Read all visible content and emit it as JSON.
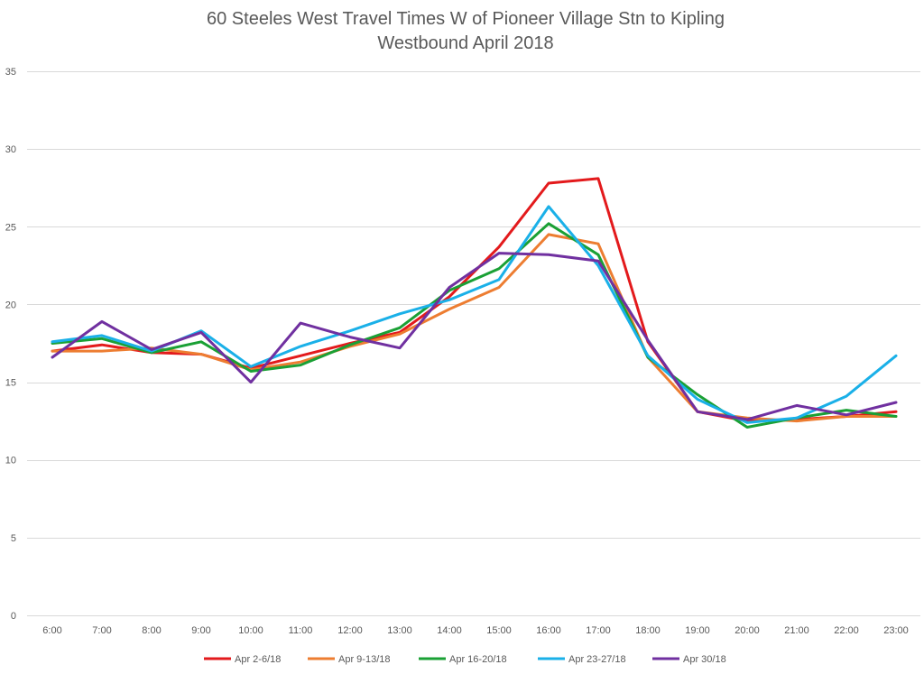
{
  "chart_data": {
    "type": "line",
    "title_line1": "60 Steeles West Travel Times W of Pioneer Village Stn to Kipling",
    "title_line2": "Westbound  April 2018",
    "xlabel": "",
    "ylabel": "",
    "categories": [
      "6:00",
      "7:00",
      "8:00",
      "9:00",
      "10:00",
      "11:00",
      "12:00",
      "13:00",
      "14:00",
      "15:00",
      "16:00",
      "17:00",
      "18:00",
      "19:00",
      "20:00",
      "21:00",
      "22:00",
      "23:00"
    ],
    "ylim": [
      0,
      35
    ],
    "yticks": [
      0,
      5,
      10,
      15,
      20,
      25,
      30,
      35
    ],
    "grid": true,
    "legend_position": "bottom",
    "series": [
      {
        "name": "Apr 2-6/18",
        "color": "#e31a1c",
        "values": [
          17.0,
          17.4,
          16.9,
          16.8,
          15.9,
          16.7,
          17.5,
          18.2,
          20.5,
          23.7,
          27.8,
          28.1,
          17.6,
          13.1,
          12.5,
          12.6,
          12.8,
          13.1
        ]
      },
      {
        "name": "Apr 9-13/18",
        "color": "#ed7d31",
        "values": [
          17.0,
          17.0,
          17.2,
          16.8,
          15.8,
          16.3,
          17.3,
          18.1,
          19.7,
          21.1,
          24.5,
          23.9,
          16.6,
          13.1,
          12.7,
          12.5,
          12.8,
          12.8
        ]
      },
      {
        "name": "Apr 16-20/18",
        "color": "#1aa035",
        "values": [
          17.5,
          17.8,
          16.9,
          17.6,
          15.7,
          16.1,
          17.4,
          18.5,
          20.9,
          22.3,
          25.2,
          23.2,
          16.6,
          14.2,
          12.1,
          12.7,
          13.2,
          12.8
        ]
      },
      {
        "name": "Apr 23-27/18",
        "color": "#1ab0e8",
        "values": [
          17.6,
          18.0,
          17.0,
          18.3,
          16.0,
          17.3,
          18.3,
          19.4,
          20.3,
          21.6,
          26.3,
          22.5,
          16.7,
          13.9,
          12.4,
          12.7,
          14.1,
          16.7
        ]
      },
      {
        "name": "Apr 30/18",
        "color": "#7030a0",
        "values": [
          16.6,
          18.9,
          17.1,
          18.2,
          15.0,
          18.8,
          17.9,
          17.2,
          21.1,
          23.3,
          23.2,
          22.8,
          17.7,
          13.1,
          12.6,
          13.5,
          12.9,
          13.7
        ]
      }
    ]
  }
}
